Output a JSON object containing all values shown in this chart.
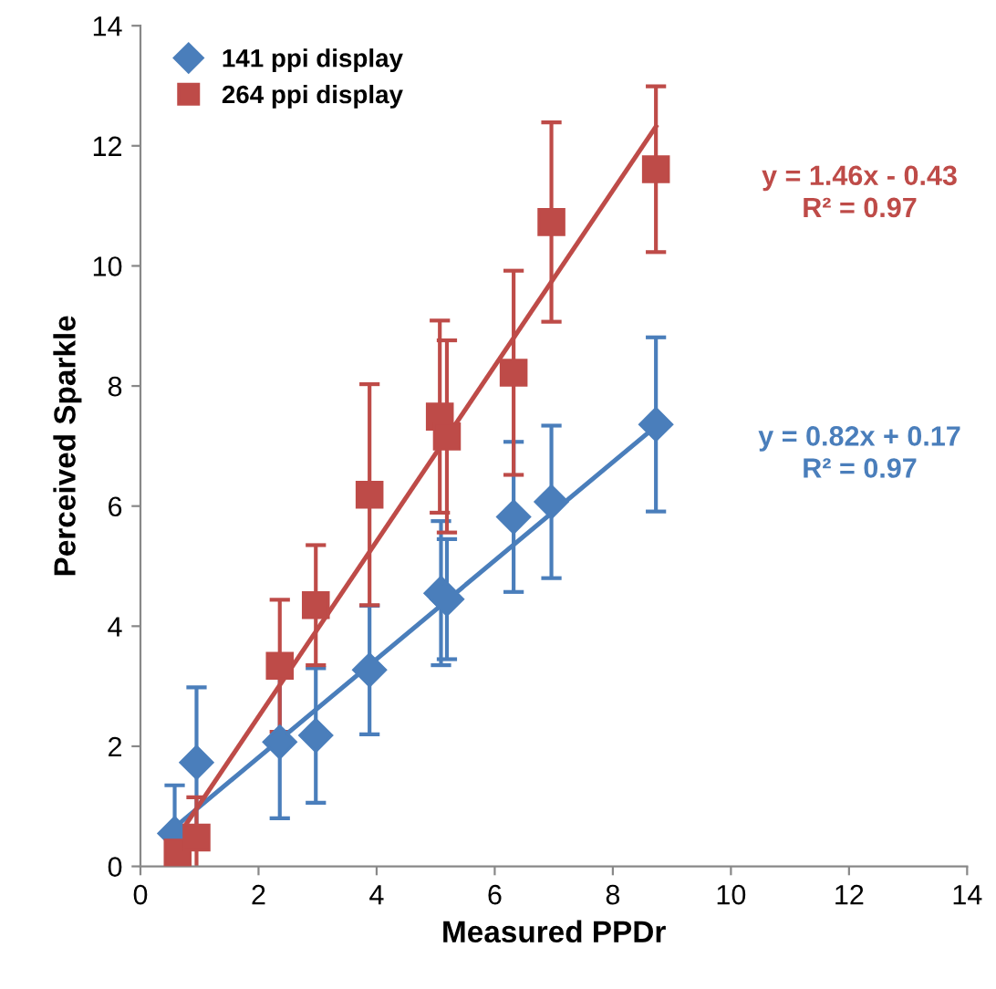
{
  "chart_data": {
    "type": "scatter",
    "xlabel": "Measured PPDr",
    "ylabel": "Perceived Sparkle",
    "xlim": [
      0,
      14
    ],
    "ylim": [
      0,
      14
    ],
    "xticks": [
      0,
      2,
      4,
      6,
      8,
      10,
      12,
      14
    ],
    "yticks": [
      0,
      2,
      4,
      6,
      8,
      10,
      12,
      14
    ],
    "grid": false,
    "legend": "top left",
    "series": [
      {
        "name": "141 ppi display",
        "marker": "diamond",
        "color": "#4a7ebb",
        "x": [
          0.58,
          0.95,
          2.36,
          2.97,
          3.88,
          5.09,
          5.19,
          6.32,
          6.96,
          8.73
        ],
        "values": [
          0.55,
          1.73,
          2.07,
          2.18,
          3.27,
          4.55,
          4.45,
          5.82,
          6.07,
          7.36
        ],
        "errors": [
          0.8,
          1.25,
          1.27,
          1.12,
          1.07,
          1.2,
          1.0,
          1.25,
          1.27,
          1.45
        ]
      },
      {
        "name": "264 ppi display",
        "marker": "square",
        "color": "#be4b48",
        "x": [
          0.63,
          0.95,
          2.36,
          2.97,
          3.88,
          5.07,
          5.19,
          6.32,
          6.96,
          8.73
        ],
        "values": [
          0.23,
          0.48,
          3.34,
          4.35,
          6.19,
          7.49,
          7.16,
          8.22,
          10.73,
          11.61
        ],
        "errors": [
          null,
          0.67,
          1.1,
          1.0,
          1.84,
          1.6,
          1.6,
          1.7,
          1.66,
          1.38
        ]
      },
      {
        "type": "line",
        "marker": "none",
        "color": "#4a7ebb",
        "x": [
          0.58,
          8.73
        ],
        "values": [
          0.65,
          7.33
        ]
      },
      {
        "type": "line",
        "marker": "none",
        "color": "#be4b48",
        "x": [
          0.58,
          8.73
        ],
        "values": [
          0.42,
          12.32
        ]
      }
    ],
    "annotations": [
      "y = 1.46x - 0.43\nR² = 0.97",
      "y = 0.82x + 0.17\nR² = 0.97"
    ]
  }
}
